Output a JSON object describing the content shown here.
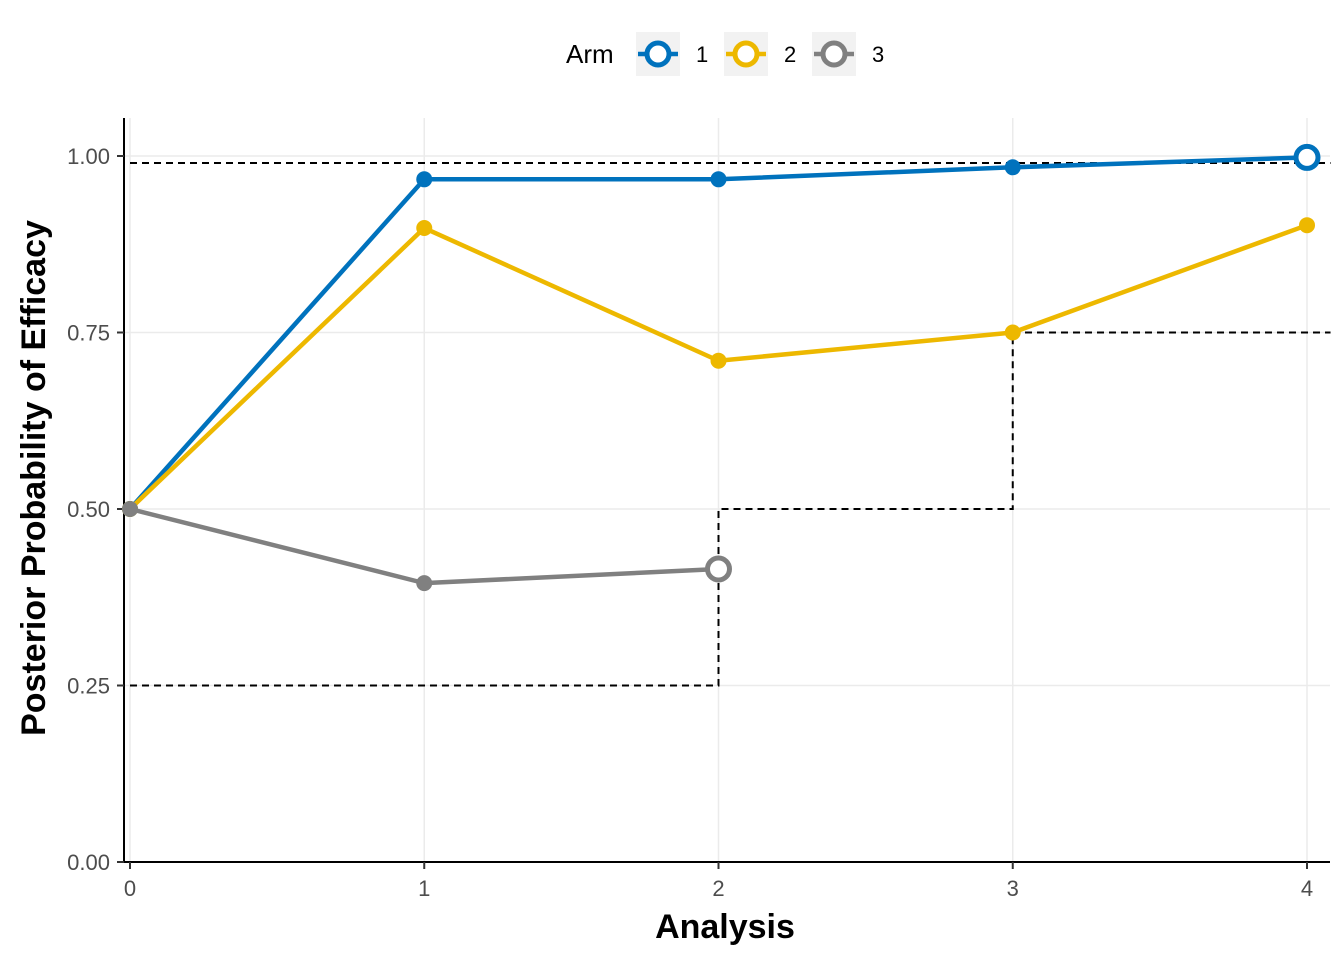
{
  "chart_data": {
    "type": "line",
    "xlabel": "Analysis",
    "ylabel": "Posterior Probability of Efficacy",
    "xlim": [
      0,
      4
    ],
    "ylim": [
      0,
      1.05
    ],
    "x_ticks": [
      "0",
      "1",
      "2",
      "3",
      "4"
    ],
    "y_ticks": [
      "0.00",
      "0.25",
      "0.50",
      "0.75",
      "1.00"
    ],
    "grid": true,
    "legend": {
      "title": "Arm",
      "position": "top"
    },
    "series": [
      {
        "name": "1",
        "color": "#0072BD",
        "x": [
          0,
          1,
          2,
          3,
          4
        ],
        "y": [
          0.5,
          0.967,
          0.967,
          0.984,
          0.998
        ],
        "final_marker": "open"
      },
      {
        "name": "2",
        "color": "#EDB800",
        "x": [
          0,
          1,
          2,
          3,
          4
        ],
        "y": [
          0.5,
          0.898,
          0.71,
          0.75,
          0.902
        ],
        "final_marker": "filled"
      },
      {
        "name": "3",
        "color": "#808080",
        "x": [
          0,
          1,
          2
        ],
        "y": [
          0.5,
          0.395,
          0.415
        ],
        "final_marker": "open"
      }
    ],
    "boundaries": [
      {
        "name": "efficacy-threshold",
        "style": "dashed",
        "x": [
          0,
          4.08
        ],
        "y": [
          0.99,
          0.99
        ]
      },
      {
        "name": "futility-boundary",
        "style": "dashed",
        "x": [
          0,
          2,
          2,
          3,
          3,
          4.08
        ],
        "y": [
          0.25,
          0.25,
          0.5,
          0.5,
          0.75,
          0.75
        ]
      }
    ]
  }
}
